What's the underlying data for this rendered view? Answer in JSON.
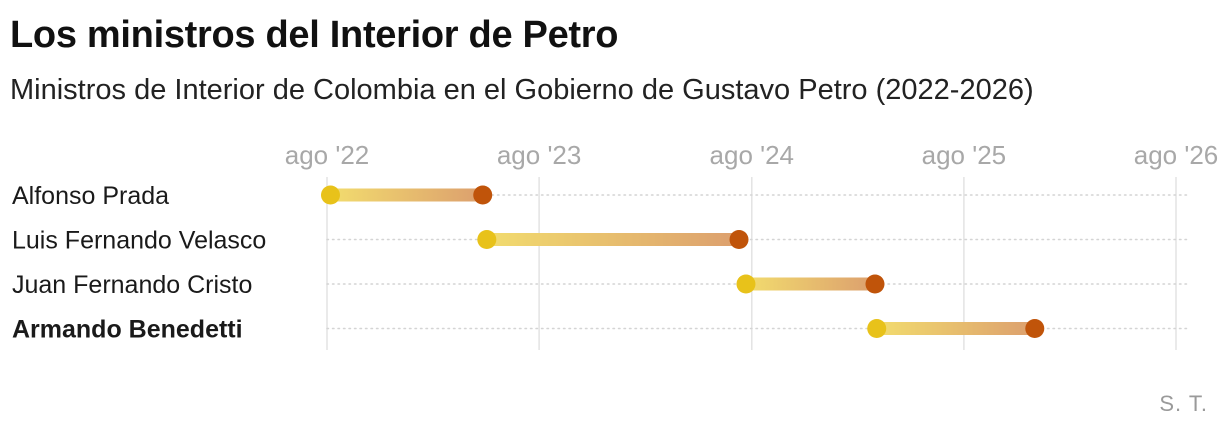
{
  "title": "Los ministros del Interior de Petro",
  "subtitle": "Ministros de Interior de Colombia en el Gobierno de Gustavo Petro (2022-2026)",
  "credit": "S. T.",
  "colors": {
    "start_dot": "#e8c21a",
    "end_dot": "#c0540a",
    "bar_start": "#f2dc6e",
    "bar_end": "#dc9f6e",
    "grid": "#e3e3e3",
    "row_guide": "#d4d4d4"
  },
  "chart_data": {
    "type": "bar",
    "variant": "timeline-range",
    "title": "Los ministros del Interior de Petro",
    "subtitle": "Ministros de Interior de Colombia en el Gobierno de Gustavo Petro (2022-2026)",
    "x_axis": {
      "ticks": [
        {
          "date": "2022-08",
          "label": "ago '22"
        },
        {
          "date": "2023-08",
          "label": "ago '23"
        },
        {
          "date": "2024-08",
          "label": "ago '24"
        },
        {
          "date": "2025-08",
          "label": "ago '25"
        },
        {
          "date": "2026-08",
          "label": "ago '26"
        }
      ],
      "range": [
        "2022-08",
        "2026-08"
      ],
      "position": "top"
    },
    "grid": true,
    "series": [
      {
        "label": "Alfonso Prada",
        "start": "2022-08-07",
        "end": "2023-04-26",
        "highlight": false
      },
      {
        "label": "Luis Fernando Velasco",
        "start": "2023-05-03",
        "end": "2024-07-10",
        "highlight": false
      },
      {
        "label": "Juan Fernando Cristo",
        "start": "2024-07-22",
        "end": "2025-03-01",
        "highlight": false
      },
      {
        "label": "Armando Benedetti",
        "start": "2025-03-04",
        "end": "2025-12-01",
        "highlight": true
      }
    ]
  }
}
